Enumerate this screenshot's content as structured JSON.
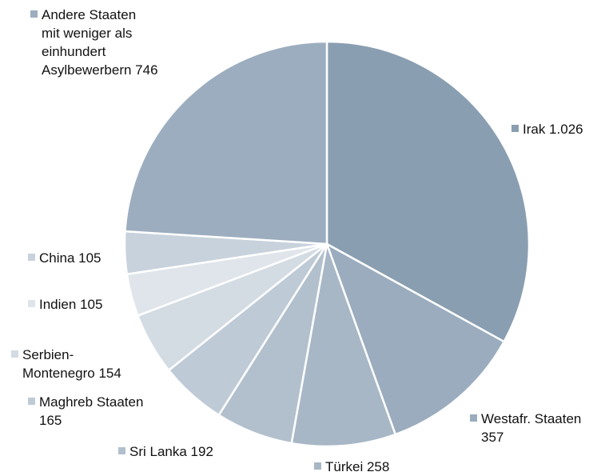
{
  "chart_data": {
    "type": "pie",
    "slices": [
      {
        "label": "Irak",
        "value": 1026,
        "display": "Irak 1.026",
        "color": "#8a9eb1"
      },
      {
        "label": "Westafr. Staaten",
        "value": 357,
        "display": "Westafr. Staaten\n357",
        "color": "#9aacbe"
      },
      {
        "label": "Türkei",
        "value": 258,
        "display": "Türkei 258",
        "color": "#a7b7c6"
      },
      {
        "label": "Sri Lanka",
        "value": 192,
        "display": "Sri Lanka 192",
        "color": "#b2c0cd"
      },
      {
        "label": "Maghreb Staaten",
        "value": 165,
        "display": "Maghreb Staaten\n165",
        "color": "#becad6"
      },
      {
        "label": "Serbien-Montenegro",
        "value": 154,
        "display": "Serbien-\nMontenegro 154",
        "color": "#d3dbe3"
      },
      {
        "label": "Indien",
        "value": 105,
        "display": "Indien  105",
        "color": "#dfe5eb"
      },
      {
        "label": "China",
        "value": 105,
        "display": "China 105",
        "color": "#c8d2dc"
      },
      {
        "label": "Andere Staaten mit weniger als einhundert Asylbewerbern",
        "value": 746,
        "display": "Andere Staaten\nmit weniger als\neinhundert\nAsylbewerbern 746",
        "color": "#9cadbf"
      }
    ]
  }
}
